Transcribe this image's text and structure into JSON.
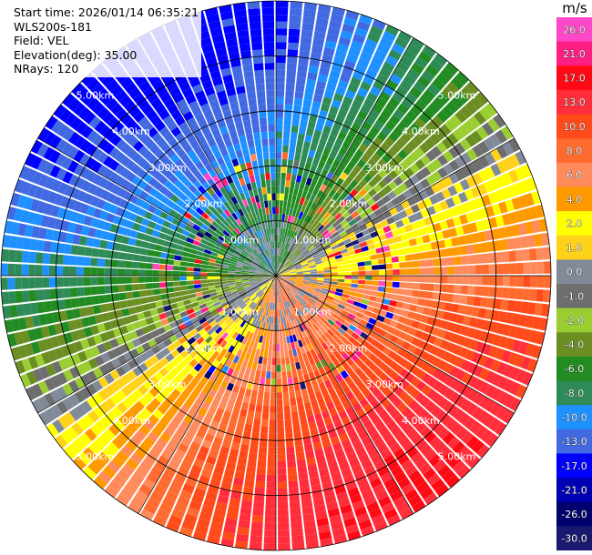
{
  "meta": {
    "start_time": "Start time: 2026/01/14 06:35:21",
    "instrument": "WLS200s-181",
    "field": "Field: VEL",
    "elevation": "Elevation(deg): 35.00",
    "nrays": "NRays: 120"
  },
  "chart_data": {
    "type": "heatmap",
    "projection": "polar-ppi",
    "field": "VEL",
    "units": "m/s",
    "nrays": 120,
    "elevation_deg": 35.0,
    "max_range_km": 5.0,
    "range_rings_km": [
      1.0,
      2.0,
      3.0,
      4.0,
      5.0
    ],
    "ring_labels": [
      "1.00km",
      "2.00km",
      "3.00km",
      "4.00km",
      "5.00km"
    ],
    "colorbar": {
      "title": "m/s",
      "ticks": [
        "26.0",
        "21.0",
        "17.0",
        "13.0",
        "10.0",
        "8.0",
        "6.0",
        "4.0",
        "2.0",
        "1.0",
        "0.0",
        "-1.0",
        "-2.0",
        "-4.0",
        "-6.0",
        "-8.0",
        "-10.0",
        "-13.0",
        "-17.0",
        "-21.0",
        "-26.0",
        "-30.0"
      ],
      "bins": [
        {
          "from": 26,
          "to": 30,
          "color": "#ff47c8"
        },
        {
          "from": 21,
          "to": 26,
          "color": "#ff1f82"
        },
        {
          "from": 17,
          "to": 21,
          "color": "#ff0a14"
        },
        {
          "from": 13,
          "to": 17,
          "color": "#ff2e3a"
        },
        {
          "from": 10,
          "to": 13,
          "color": "#ff4a1a"
        },
        {
          "from": 8,
          "to": 10,
          "color": "#ff6a2e"
        },
        {
          "from": 6,
          "to": 8,
          "color": "#ff8a5c"
        },
        {
          "from": 4,
          "to": 6,
          "color": "#ff9900"
        },
        {
          "from": 2,
          "to": 4,
          "color": "#ffff00"
        },
        {
          "from": 1,
          "to": 2,
          "color": "#ffd21a"
        },
        {
          "from": 0,
          "to": 1,
          "color": "#808a99"
        },
        {
          "from": -1,
          "to": 0,
          "color": "#6e6e6e"
        },
        {
          "from": -2,
          "to": -1,
          "color": "#9acd32"
        },
        {
          "from": -4,
          "to": -2,
          "color": "#6b8e23"
        },
        {
          "from": -6,
          "to": -4,
          "color": "#228b22"
        },
        {
          "from": -8,
          "to": -6,
          "color": "#2e8b57"
        },
        {
          "from": -10,
          "to": -8,
          "color": "#1e90ff"
        },
        {
          "from": -13,
          "to": -10,
          "color": "#4169e1"
        },
        {
          "from": -17,
          "to": -13,
          "color": "#0000ff"
        },
        {
          "from": -21,
          "to": -17,
          "color": "#0000b4"
        },
        {
          "from": -26,
          "to": -21,
          "color": "#00006e"
        },
        {
          "from": -30,
          "to": -26,
          "color": "#191970"
        }
      ]
    },
    "velocity_pattern": {
      "description_free": true,
      "peak_positive_ms": 17.0,
      "peak_negative_ms": -15.0,
      "positive_azimuth_deg": 150,
      "negative_azimuth_deg": 330
    }
  }
}
